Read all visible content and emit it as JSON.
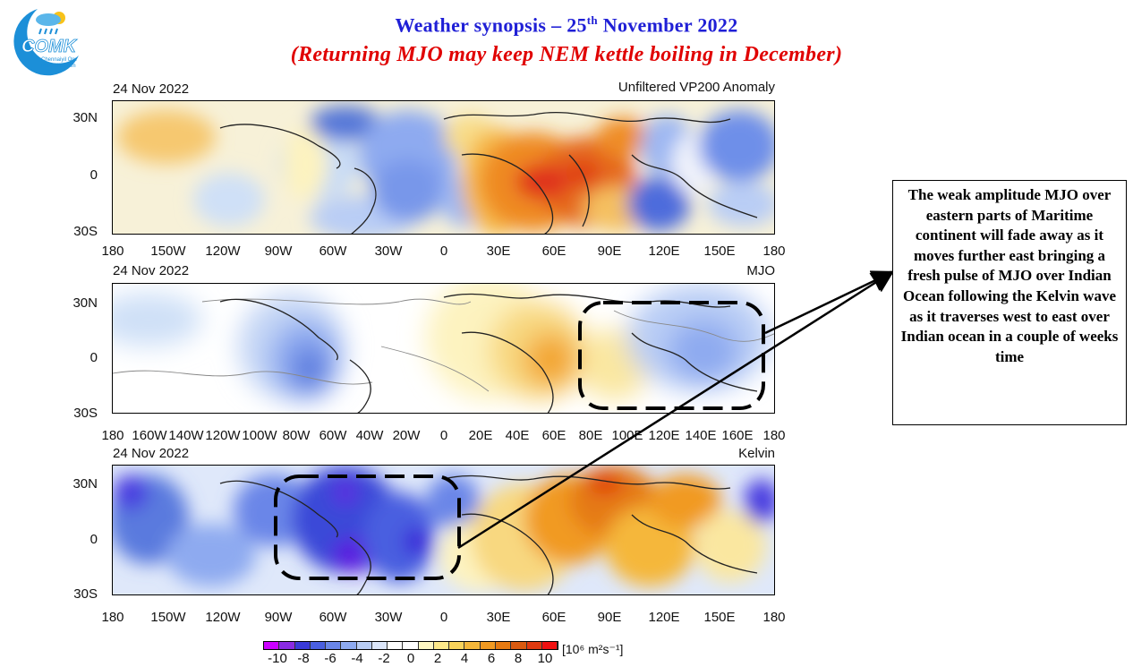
{
  "header": {
    "title_main": "Weather synopsis – 25",
    "title_sup": "th",
    "title_rest": " November 2022",
    "subtitle": "(Returning MJO may keep NEM kettle boiling in December)"
  },
  "logo": {
    "text": "COMK",
    "subtext1": "Chennaiyil Oru",
    "subtext2": "Mazhaikaalam"
  },
  "panels": [
    {
      "date": "24 Nov 2022",
      "label": "Unfiltered VP200 Anomaly",
      "xticks": [
        "180",
        "150W",
        "120W",
        "90W",
        "60W",
        "30W",
        "0",
        "30E",
        "60E",
        "90E",
        "120E",
        "150E",
        "180"
      ],
      "yticks": [
        "30N",
        "0",
        "30S"
      ]
    },
    {
      "date": "24 Nov 2022",
      "label": "MJO",
      "xticks": [
        "180",
        "160W",
        "140W",
        "120W",
        "100W",
        "80W",
        "60W",
        "40W",
        "20W",
        "0",
        "20E",
        "40E",
        "60E",
        "80E",
        "100E",
        "120E",
        "140E",
        "160E",
        "180"
      ],
      "yticks": [
        "30N",
        "0",
        "30S"
      ]
    },
    {
      "date": "24 Nov 2022",
      "label": "Kelvin",
      "xticks": [
        "180",
        "150W",
        "120W",
        "90W",
        "60W",
        "30W",
        "0",
        "30E",
        "60E",
        "90E",
        "120E",
        "150E",
        "180"
      ],
      "yticks": [
        "30N",
        "0",
        "30S"
      ]
    }
  ],
  "callout": {
    "text": "The weak amplitude MJO over eastern parts of Maritime continent will fade away as it moves further east bringing a fresh pulse of MJO over Indian Ocean following the Kelvin wave as it traverses west to east over Indian ocean in a couple of weeks time"
  },
  "colorbar": {
    "labels": [
      "-10",
      "-8",
      "-6",
      "-4",
      "-2",
      "0",
      "2",
      "4",
      "6",
      "8",
      "10"
    ],
    "units": "[10⁶ m²s⁻¹]",
    "colors": [
      "#cc00ff",
      "#8a2be2",
      "#3a3ad8",
      "#4a5fe0",
      "#6a86e8",
      "#8eaaf0",
      "#b9cdf5",
      "#dce6fa",
      "#ffffff",
      "#ffffff",
      "#fff7c2",
      "#fde98a",
      "#f9d35a",
      "#f5b73a",
      "#f19a22",
      "#e57a12",
      "#d95a10",
      "#e03a10",
      "#f01010"
    ]
  },
  "colors": {
    "title_blue": "#1f1fd6",
    "subtitle_red": "#e00000"
  }
}
